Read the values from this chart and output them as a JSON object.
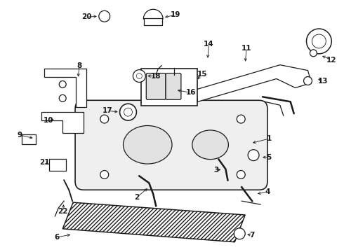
{
  "bg_color": "#ffffff",
  "line_color": "#1a1a1a",
  "figsize": [
    4.9,
    3.6
  ],
  "dpi": 100
}
